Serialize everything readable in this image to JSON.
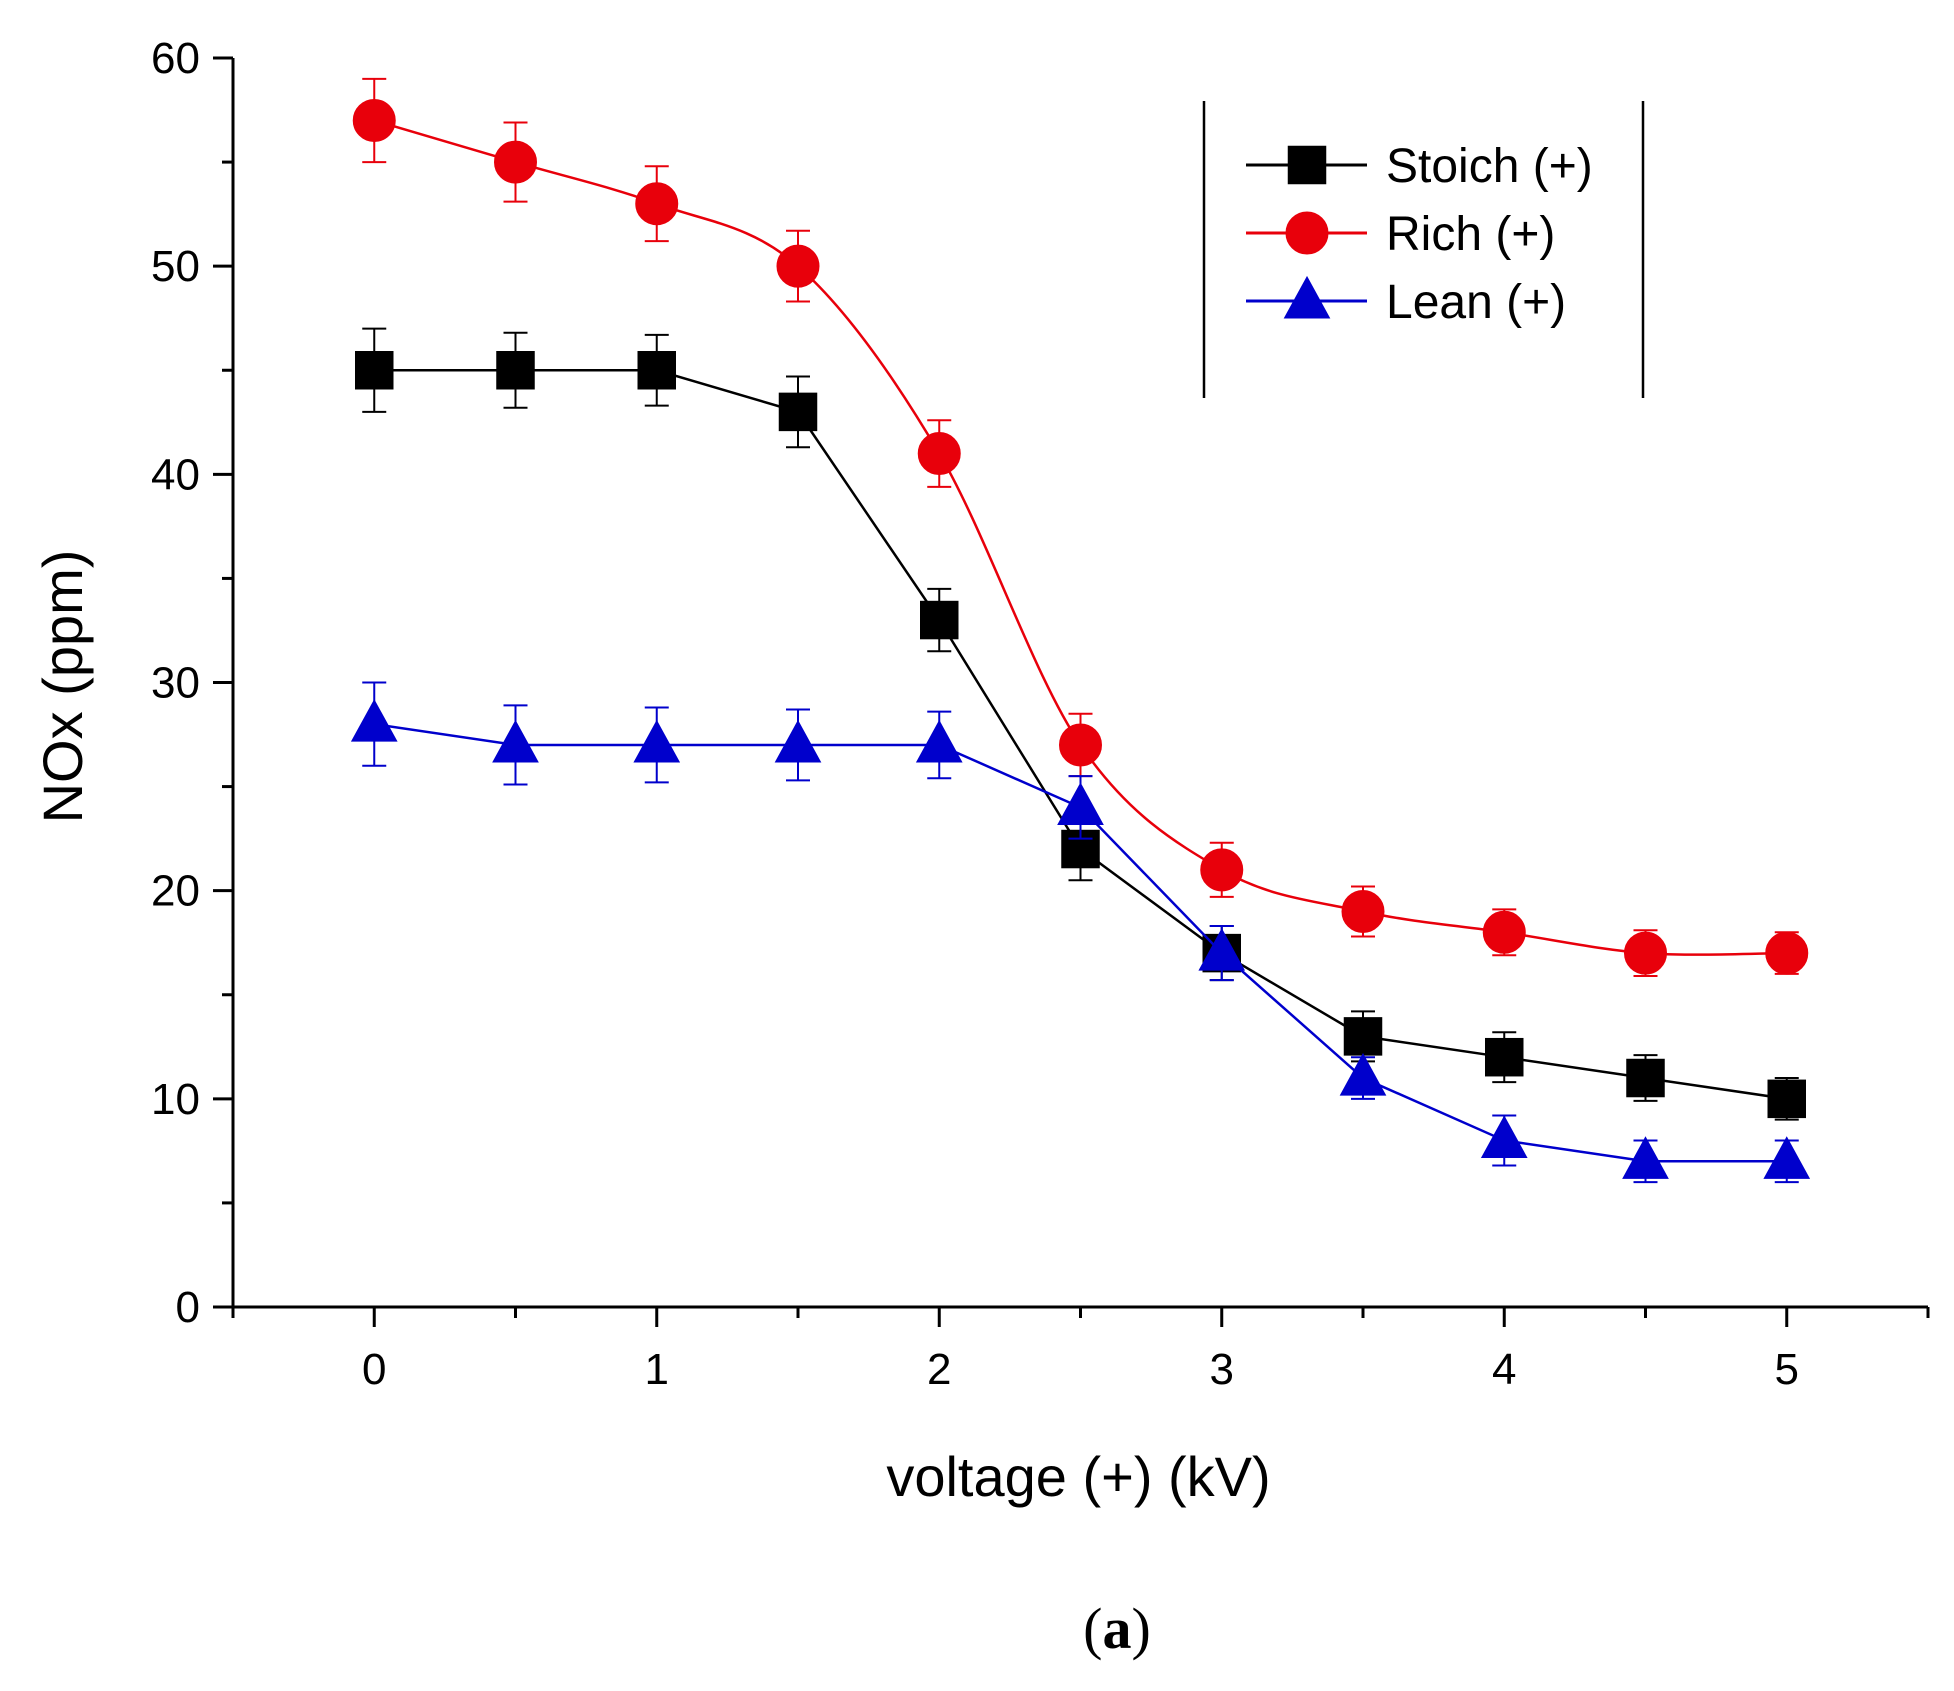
{
  "chart_data": {
    "type": "line",
    "title": "",
    "xlabel": "voltage (+) (kV)",
    "ylabel": "NOx (ppm)",
    "xlim": [
      -0.5,
      5.5
    ],
    "ylim": [
      0,
      60
    ],
    "x": [
      0,
      0.5,
      1,
      1.5,
      2,
      2.5,
      3,
      3.5,
      4,
      4.5,
      5
    ],
    "x_ticks": [
      0,
      1,
      2,
      3,
      4,
      5
    ],
    "x_tick_labels": [
      "0",
      "1",
      "2",
      "3",
      "4",
      "5"
    ],
    "y_ticks": [
      0,
      10,
      20,
      30,
      40,
      50,
      60
    ],
    "y_tick_labels": [
      "0",
      "10",
      "20",
      "30",
      "40",
      "50",
      "60"
    ],
    "grid": false,
    "legend_position": "top-right",
    "series": [
      {
        "name": "Stoich (+)",
        "color": "#000000",
        "marker": "square",
        "values": [
          45,
          45,
          45,
          43,
          33,
          22,
          17,
          13,
          12,
          11,
          10
        ],
        "errors": [
          2.0,
          1.8,
          1.7,
          1.7,
          1.5,
          1.5,
          1.3,
          1.2,
          1.2,
          1.1,
          1.0
        ]
      },
      {
        "name": "Rich (+)",
        "color": "#e8000b",
        "marker": "circle",
        "values": [
          57,
          55,
          53,
          50,
          41,
          27,
          21,
          19,
          18,
          17,
          17
        ],
        "errors": [
          2.0,
          1.9,
          1.8,
          1.7,
          1.6,
          1.5,
          1.3,
          1.2,
          1.1,
          1.1,
          1.0
        ]
      },
      {
        "name": "Lean (+)",
        "color": "#0000cc",
        "marker": "triangle",
        "values": [
          28,
          27,
          27,
          27,
          27,
          24,
          17,
          11,
          8,
          7,
          7
        ],
        "errors": [
          2.0,
          1.9,
          1.8,
          1.7,
          1.6,
          1.5,
          1.3,
          1.0,
          1.2,
          1.0,
          1.0
        ]
      }
    ]
  },
  "panel_label": {
    "open": "(",
    "letter": "a",
    "close": ")"
  }
}
